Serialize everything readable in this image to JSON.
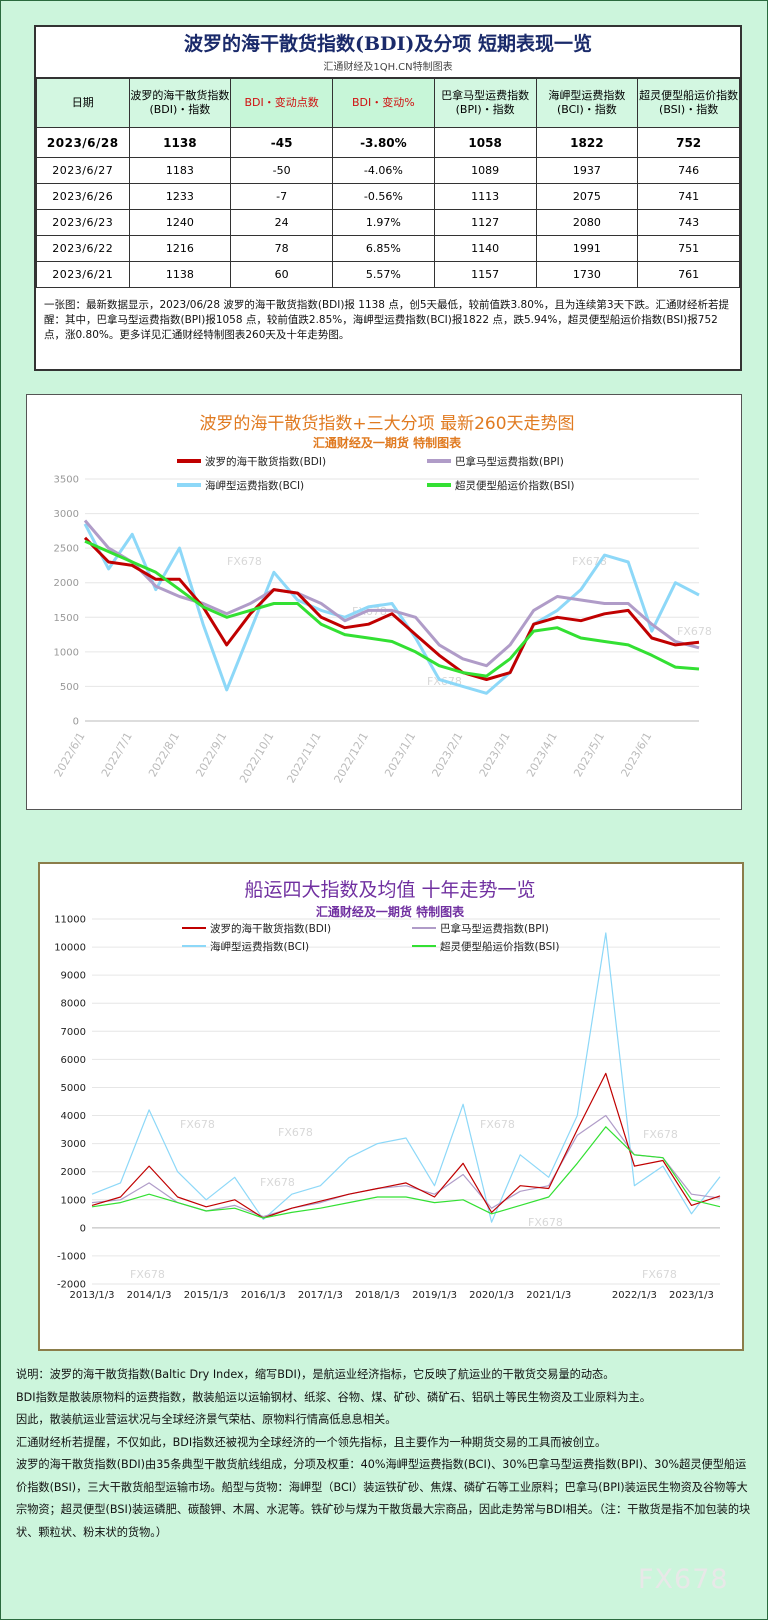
{
  "table": {
    "title": "波罗的海干散货指数(BDI)及分项  短期表现一览",
    "subtitle": "汇通财经及1QH.CN特制图表",
    "headers": [
      "日期",
      "波罗的海干散货指数(BDI)・指数",
      "BDI・变动点数",
      "BDI・变动%",
      "巴拿马型运费指数(BPI)・指数",
      "海岬型运费指数(BCI)・指数",
      "超灵便型船运价指数(BSI)・指数"
    ],
    "rows": [
      [
        "2023/6/28",
        "1138",
        "-45",
        "-3.80%",
        "1058",
        "1822",
        "752"
      ],
      [
        "2023/6/27",
        "1183",
        "-50",
        "-4.06%",
        "1089",
        "1937",
        "746"
      ],
      [
        "2023/6/26",
        "1233",
        "-7",
        "-0.56%",
        "1113",
        "2075",
        "741"
      ],
      [
        "2023/6/23",
        "1240",
        "24",
        "1.97%",
        "1127",
        "2080",
        "743"
      ],
      [
        "2023/6/22",
        "1216",
        "78",
        "6.85%",
        "1140",
        "1991",
        "751"
      ],
      [
        "2023/6/21",
        "1138",
        "60",
        "5.57%",
        "1157",
        "1730",
        "761"
      ]
    ],
    "note": "一张图：最新数据显示，2023/06/28 波罗的海干散货指数(BDI)报 1138 点，创5天最低，较前值跌3.80%，且为连续第3天下跌。汇通财经析若提醒：其中，巴拿马型运费指数(BPI)报1058 点，较前值跌2.85%，海岬型运费指数(BCI)报1822 点，跌5.94%，超灵便型船运价指数(BSI)报752 点，涨0.80%。更多详见汇通财经特制图表260天及十年走势图。"
  },
  "colors": {
    "bdi": "#c00000",
    "bpi": "#b09cc8",
    "bci": "#8dd8f8",
    "bsi": "#33e033",
    "title1": "#e07a20",
    "title2": "#7030a0"
  },
  "chart_data": [
    {
      "type": "line",
      "title": "波罗的海干散货指数+三大分项  最新260天走势图",
      "subtitle": "汇通财经及一期货  特制图表",
      "watermark": "FX678",
      "x": [
        "2022/6/1",
        "2022/6/15",
        "2022/7/1",
        "2022/7/15",
        "2022/8/1",
        "2022/8/15",
        "2022/9/1",
        "2022/9/15",
        "2022/10/1",
        "2022/10/15",
        "2022/11/1",
        "2022/11/15",
        "2022/12/1",
        "2022/12/15",
        "2023/1/1",
        "2023/1/15",
        "2023/2/1",
        "2023/2/15",
        "2023/3/1",
        "2023/3/15",
        "2023/4/1",
        "2023/4/15",
        "2023/5/1",
        "2023/5/15",
        "2023/6/1",
        "2023/6/15",
        "2023/6/28"
      ],
      "x_ticks": [
        "2022/6/1",
        "2022/7/1",
        "2022/8/1",
        "2022/9/1",
        "2022/10/1",
        "2022/11/1",
        "2022/12/1",
        "2023/1/1",
        "2023/2/1",
        "2023/3/1",
        "2023/4/1",
        "2023/5/1",
        "2023/6/1"
      ],
      "series": [
        {
          "name": "波罗的海干散货指数(BDI)",
          "values": [
            2650,
            2300,
            2250,
            2050,
            2050,
            1650,
            1100,
            1550,
            1900,
            1850,
            1500,
            1350,
            1400,
            1550,
            1250,
            950,
            700,
            600,
            700,
            1400,
            1500,
            1450,
            1550,
            1600,
            1200,
            1100,
            1138
          ]
        },
        {
          "name": "巴拿马型运费指数(BPI)",
          "values": [
            2900,
            2500,
            2300,
            1950,
            1800,
            1700,
            1550,
            1700,
            1900,
            1850,
            1700,
            1450,
            1600,
            1600,
            1500,
            1100,
            900,
            800,
            1100,
            1600,
            1800,
            1750,
            1700,
            1700,
            1400,
            1150,
            1058
          ]
        },
        {
          "name": "海岬型运费指数(BCI)",
          "values": [
            2850,
            2200,
            2700,
            1900,
            2500,
            1400,
            450,
            1300,
            2150,
            1750,
            1600,
            1500,
            1650,
            1700,
            1200,
            600,
            500,
            400,
            700,
            1400,
            1600,
            1900,
            2400,
            2300,
            1300,
            2000,
            1822
          ]
        },
        {
          "name": "超灵便型船运价指数(BSI)",
          "values": [
            2600,
            2450,
            2300,
            2150,
            1900,
            1650,
            1500,
            1600,
            1700,
            1700,
            1400,
            1250,
            1200,
            1150,
            1000,
            800,
            700,
            650,
            900,
            1300,
            1350,
            1200,
            1150,
            1100,
            950,
            780,
            752
          ]
        }
      ],
      "ylim": [
        0,
        3500
      ],
      "yticks": [
        0,
        500,
        1000,
        1500,
        2000,
        2500,
        3000,
        3500
      ],
      "legend": "top"
    },
    {
      "type": "line",
      "title": "船运四大指数及均值 十年走势一览",
      "subtitle": "汇通财经及一期货 特制图表",
      "watermark": "FX678",
      "x": [
        "2013/1/3",
        "2013/7/1",
        "2014/1/3",
        "2014/7/1",
        "2015/1/3",
        "2015/7/1",
        "2016/1/3",
        "2016/7/1",
        "2017/1/3",
        "2017/7/1",
        "2018/1/3",
        "2018/7/1",
        "2019/1/3",
        "2019/7/1",
        "2020/1/3",
        "2020/7/1",
        "2021/1/3",
        "2021/7/1",
        "2021/10/1",
        "2022/1/3",
        "2022/7/1",
        "2023/1/3",
        "2023/6/28"
      ],
      "x_ticks": [
        "2013/1/3",
        "2014/1/3",
        "2015/1/3",
        "2016/1/3",
        "2017/1/3",
        "2018/1/3",
        "2019/1/3",
        "2020/1/3",
        "2021/1/3",
        "2022/1/3",
        "2023/1/3"
      ],
      "series": [
        {
          "name": "波罗的海干散货指数(BDI)",
          "values": [
            800,
            1100,
            2200,
            1100,
            750,
            1000,
            350,
            700,
            950,
            1200,
            1400,
            1600,
            1100,
            2300,
            550,
            1500,
            1400,
            3500,
            5500,
            2200,
            2400,
            800,
            1138
          ]
        },
        {
          "name": "巴拿马型运费指数(BPI)",
          "values": [
            900,
            1000,
            1600,
            900,
            600,
            800,
            400,
            700,
            900,
            1200,
            1400,
            1500,
            1200,
            1900,
            700,
            1300,
            1500,
            3300,
            4000,
            2600,
            2500,
            1200,
            1058
          ]
        },
        {
          "name": "海岬型运费指数(BCI)",
          "values": [
            1200,
            1600,
            4200,
            2000,
            1000,
            1800,
            300,
            1200,
            1500,
            2500,
            3000,
            3200,
            1500,
            4400,
            200,
            2600,
            1800,
            4000,
            10500,
            1500,
            2200,
            500,
            1822
          ]
        },
        {
          "name": "超灵便型船运价指数(BSI)",
          "values": [
            750,
            900,
            1200,
            900,
            600,
            700,
            350,
            550,
            700,
            900,
            1100,
            1100,
            900,
            1000,
            500,
            800,
            1100,
            2300,
            3600,
            2600,
            2500,
            1000,
            752
          ]
        }
      ],
      "ylim": [
        -2000,
        11000
      ],
      "yticks": [
        -2000,
        -1000,
        0,
        1000,
        2000,
        3000,
        4000,
        5000,
        6000,
        7000,
        8000,
        9000,
        10000,
        11000
      ],
      "legend": "top"
    }
  ],
  "description": [
    "说明：波罗的海干散货指数(Baltic Dry Index，缩写BDI)，是航运业经济指标，它反映了航运业的干散货交易量的动态。",
    "BDI指数是散装原物料的运费指数，散装船运以运输钢材、纸浆、谷物、煤、矿砂、磷矿石、铝矾土等民生物资及工业原料为主。",
    "因此，散装航运业营运状况与全球经济景气荣枯、原物料行情高低息息相关。",
    "汇通财经析若提醒，不仅如此，BDI指数还被视为全球经济的一个领先指标，且主要作为一种期货交易的工具而被创立。",
    "波罗的海干散货指数(BDI)由35条典型干散货航线组成，分项及权重：40%海岬型运费指数(BCI)、30%巴拿马型运费指数(BPI)、30%超灵便型船运价指数(BSI)，三大干散货船型运输市场。船型与货物：海岬型（BCI）装运铁矿砂、焦煤、磷矿石等工业原料；巴拿马(BPI)装运民生物资及谷物等大宗物资；超灵便型(BSI)装运磷肥、碳酸钾、木屑、水泥等。铁矿砂与煤为干散货最大宗商品，因此走势常与BDI相关。（注：干散货是指不加包装的块状、颗粒状、粉末状的货物。）"
  ],
  "watermark": "FX678"
}
